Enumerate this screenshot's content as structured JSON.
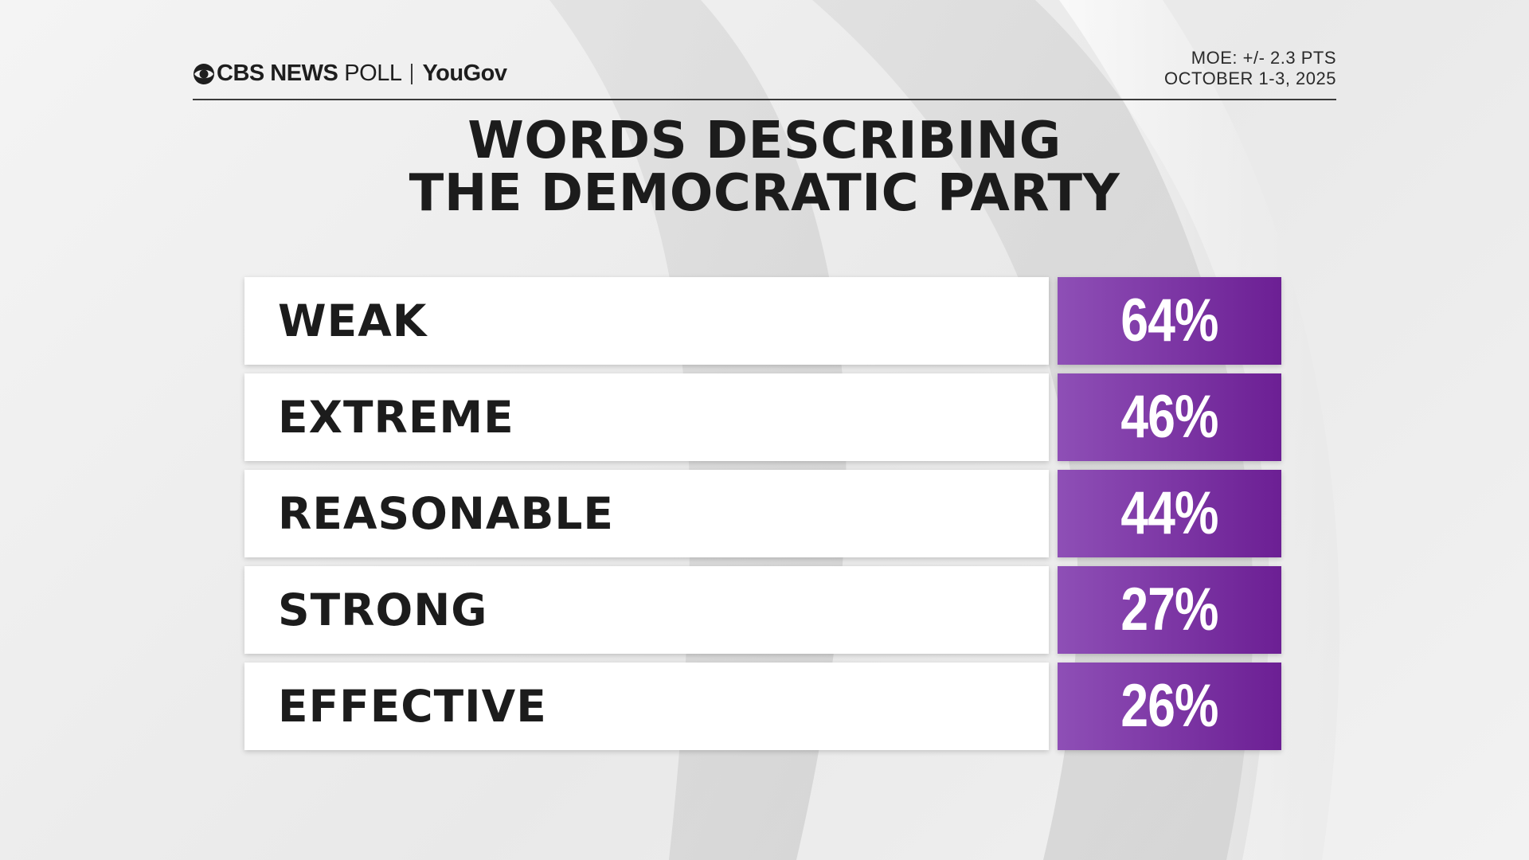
{
  "header": {
    "brand_network": "CBS NEWS",
    "brand_poll": "POLL",
    "brand_partner": "YouGov",
    "moe": "MOE: +/- 2.3 PTS",
    "dates": "OCTOBER 1-3, 2025"
  },
  "colors": {
    "value_box_start": "#8e4fb6",
    "value_box_end": "#6c1f94",
    "text_dark": "#1c1c1c"
  },
  "chart_data": {
    "type": "table",
    "title": "WORDS DESCRIBING THE DEMOCRATIC PARTY",
    "title_lines": [
      "WORDS DESCRIBING",
      "THE DEMOCRATIC PARTY"
    ],
    "categories": [
      "WEAK",
      "EXTREME",
      "REASONABLE",
      "STRONG",
      "EFFECTIVE"
    ],
    "values": [
      64,
      46,
      44,
      27,
      26
    ],
    "value_labels": [
      "64%",
      "46%",
      "44%",
      "27%",
      "26%"
    ],
    "unit": "%"
  }
}
